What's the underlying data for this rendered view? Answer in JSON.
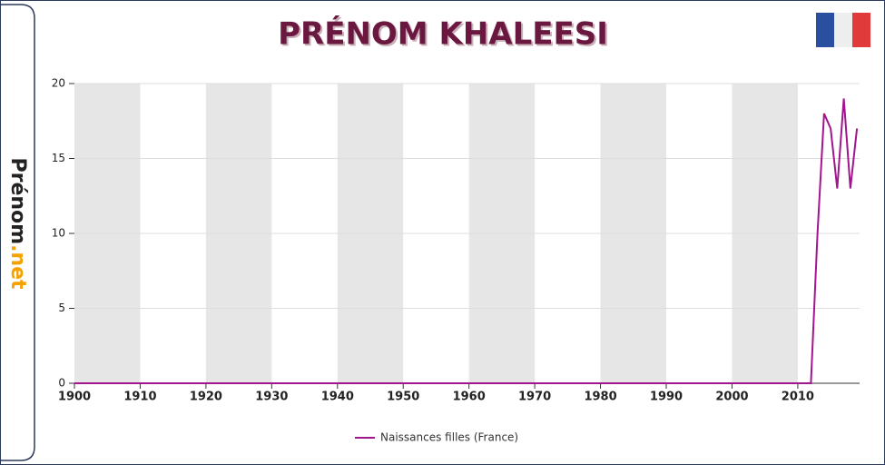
{
  "logo": {
    "name": "Prénom",
    "suffix": ".net"
  },
  "chart_data": {
    "type": "line",
    "title": "PRÉNOM KHALEESI",
    "x": [
      1900,
      1901,
      1902,
      1903,
      1904,
      1905,
      1906,
      1907,
      1908,
      1909,
      1910,
      1911,
      1912,
      1913,
      1914,
      1915,
      1916,
      1917,
      1918,
      1919,
      1920,
      1921,
      1922,
      1923,
      1924,
      1925,
      1926,
      1927,
      1928,
      1929,
      1930,
      1931,
      1932,
      1933,
      1934,
      1935,
      1936,
      1937,
      1938,
      1939,
      1940,
      1941,
      1942,
      1943,
      1944,
      1945,
      1946,
      1947,
      1948,
      1949,
      1950,
      1951,
      1952,
      1953,
      1954,
      1955,
      1956,
      1957,
      1958,
      1959,
      1960,
      1961,
      1962,
      1963,
      1964,
      1965,
      1966,
      1967,
      1968,
      1969,
      1970,
      1971,
      1972,
      1973,
      1974,
      1975,
      1976,
      1977,
      1978,
      1979,
      1980,
      1981,
      1982,
      1983,
      1984,
      1985,
      1986,
      1987,
      1988,
      1989,
      1990,
      1991,
      1992,
      1993,
      1994,
      1995,
      1996,
      1997,
      1998,
      1999,
      2000,
      2001,
      2002,
      2003,
      2004,
      2005,
      2006,
      2007,
      2008,
      2009,
      2010,
      2011,
      2012,
      2013,
      2014,
      2015,
      2016,
      2017,
      2018,
      2019
    ],
    "series": [
      {
        "name": "Naissances filles (France)",
        "color": "#a3158f",
        "values": [
          0,
          0,
          0,
          0,
          0,
          0,
          0,
          0,
          0,
          0,
          0,
          0,
          0,
          0,
          0,
          0,
          0,
          0,
          0,
          0,
          0,
          0,
          0,
          0,
          0,
          0,
          0,
          0,
          0,
          0,
          0,
          0,
          0,
          0,
          0,
          0,
          0,
          0,
          0,
          0,
          0,
          0,
          0,
          0,
          0,
          0,
          0,
          0,
          0,
          0,
          0,
          0,
          0,
          0,
          0,
          0,
          0,
          0,
          0,
          0,
          0,
          0,
          0,
          0,
          0,
          0,
          0,
          0,
          0,
          0,
          0,
          0,
          0,
          0,
          0,
          0,
          0,
          0,
          0,
          0,
          0,
          0,
          0,
          0,
          0,
          0,
          0,
          0,
          0,
          0,
          0,
          0,
          0,
          0,
          0,
          0,
          0,
          0,
          0,
          0,
          0,
          0,
          0,
          0,
          0,
          0,
          0,
          0,
          0,
          0,
          0,
          0,
          0,
          10,
          18,
          17,
          13,
          19,
          13,
          17
        ]
      }
    ],
    "xlim": [
      1900,
      2019.4
    ],
    "xticks": [
      1900,
      1910,
      1920,
      1930,
      1940,
      1950,
      1960,
      1970,
      1980,
      1990,
      2000,
      2010
    ],
    "ylim": [
      0,
      20
    ],
    "yticks": [
      0,
      5,
      10,
      15,
      20
    ],
    "grid": true,
    "band_color": "#e6e6e6",
    "legend": "bottom"
  }
}
